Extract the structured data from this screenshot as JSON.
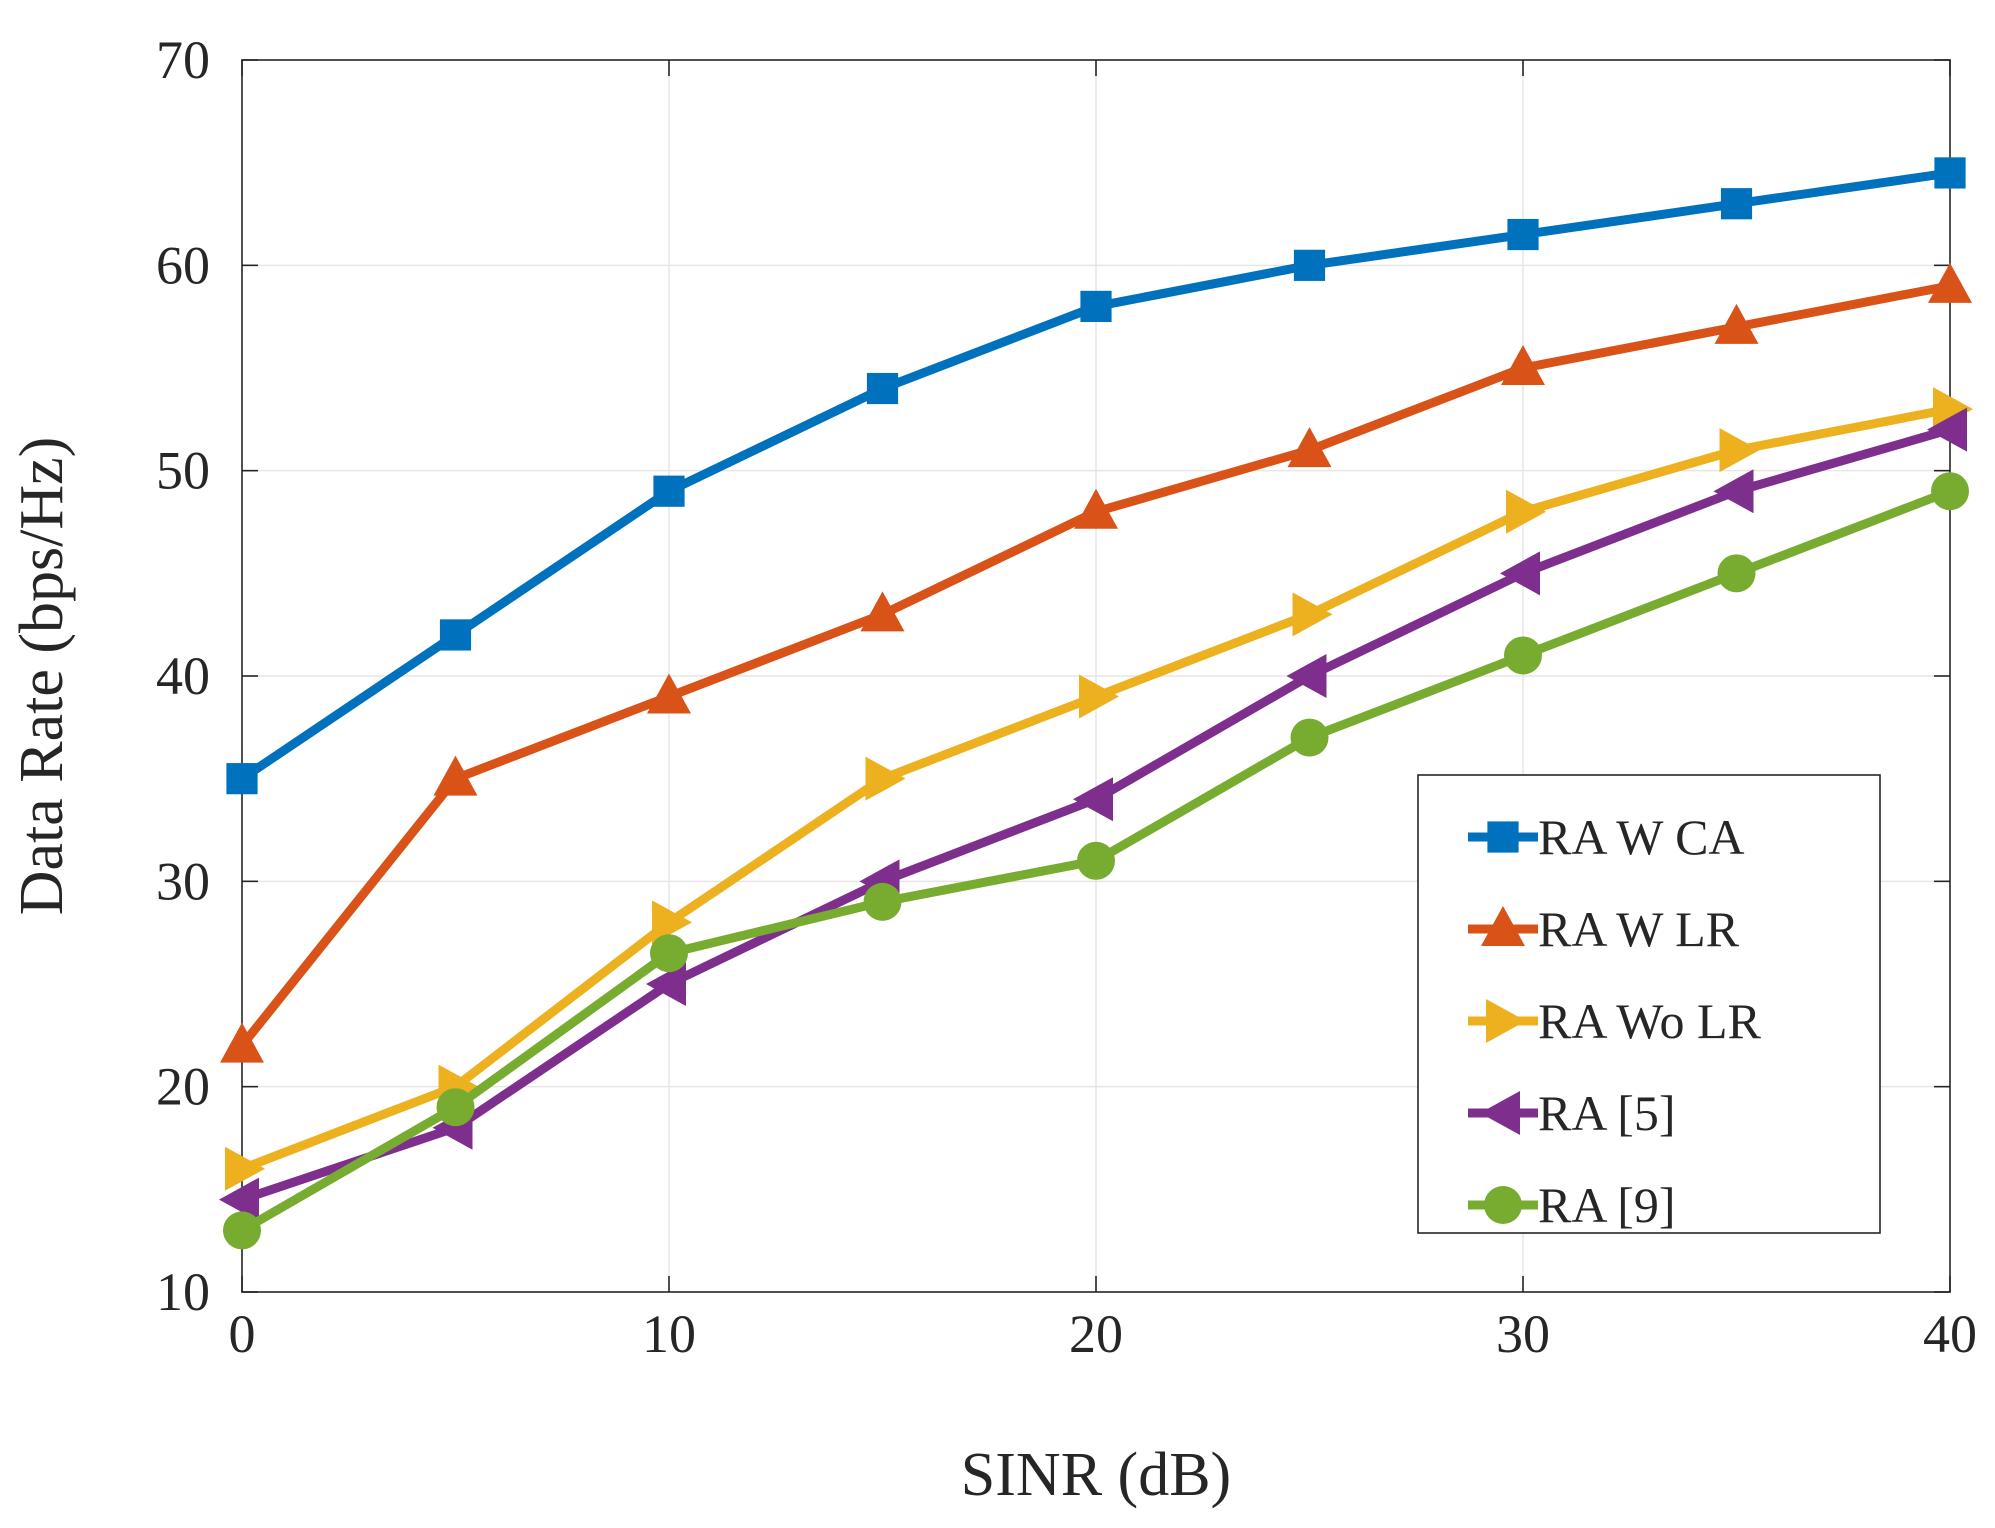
{
  "chart_data": {
    "type": "line",
    "title": "",
    "xlabel": "SINR (dB)",
    "ylabel": "Data Rate (bps/Hz)",
    "xlim": [
      0,
      40
    ],
    "ylim": [
      10,
      70
    ],
    "xticks": [
      0,
      10,
      20,
      30,
      40
    ],
    "xtick_labels": [
      "0",
      "10",
      "20",
      "30",
      "40"
    ],
    "yticks": [
      10,
      20,
      30,
      40,
      50,
      60,
      70
    ],
    "ytick_labels": [
      "10",
      "20",
      "30",
      "40",
      "50",
      "60",
      "70"
    ],
    "grid": true,
    "legend_position": "lower-right",
    "x": [
      0,
      5,
      10,
      15,
      20,
      25,
      30,
      35,
      40
    ],
    "series": [
      {
        "name": "RA W CA",
        "color": "#0072BD",
        "marker": "square",
        "values": [
          35,
          42,
          49,
          54,
          58,
          60,
          61.5,
          63,
          64.5
        ]
      },
      {
        "name": "RA W LR",
        "color": "#D95319",
        "marker": "triangle-up",
        "values": [
          22,
          35,
          39,
          43,
          48,
          51,
          55,
          57,
          59
        ]
      },
      {
        "name": "RA Wo LR",
        "color": "#EDB120",
        "marker": "triangle-right",
        "values": [
          16,
          20,
          28,
          35,
          39,
          43,
          48,
          51,
          53
        ]
      },
      {
        "name": "RA [5]",
        "color": "#7E2F8E",
        "marker": "triangle-left",
        "values": [
          14.5,
          18,
          25,
          30,
          34,
          40,
          45,
          49,
          52
        ]
      },
      {
        "name": "RA [9]",
        "color": "#77AC30",
        "marker": "circle",
        "values": [
          13,
          19,
          26.5,
          29,
          31,
          37,
          41,
          45,
          49
        ]
      }
    ]
  }
}
